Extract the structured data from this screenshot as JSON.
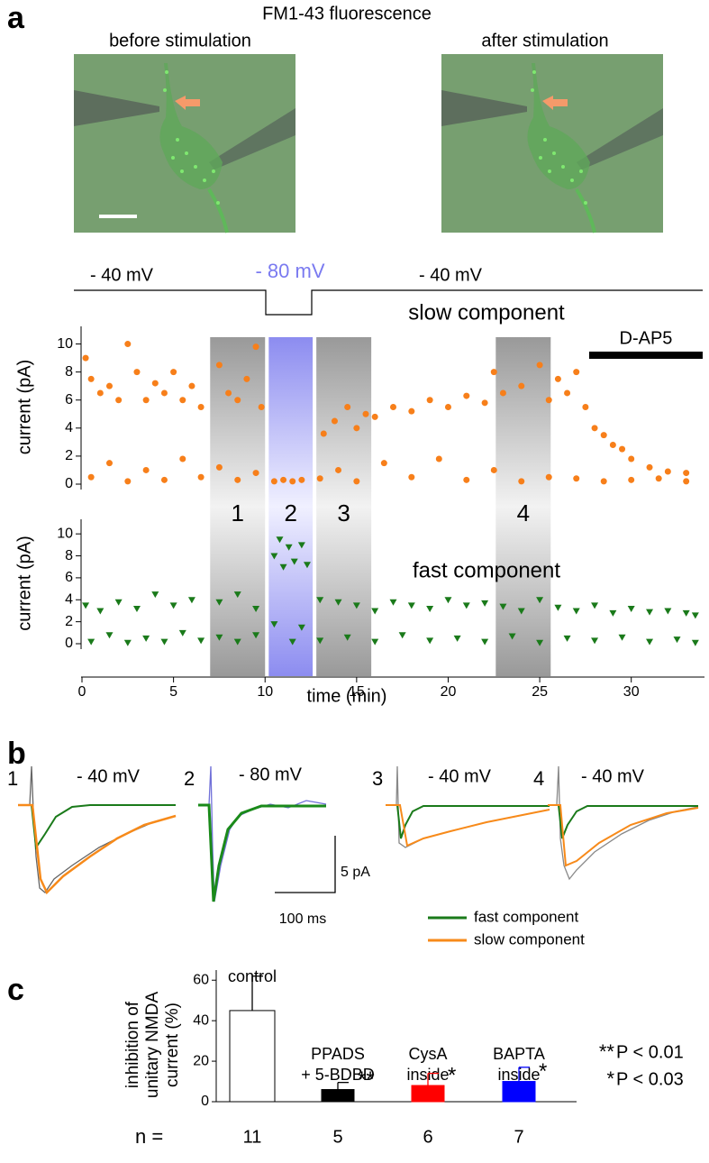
{
  "panel_a": {
    "letter": "a",
    "title": "FM1-43 fluorescence",
    "image_labels": [
      "before stimulation",
      "after stimulation"
    ],
    "protocol": [
      "- 40 mV",
      "- 80 mV",
      "- 40 mV"
    ],
    "periods": [
      {
        "label": "1",
        "start": 7,
        "end": 10
      },
      {
        "label": "2",
        "start": 10.2,
        "end": 12.6
      },
      {
        "label": "3",
        "start": 12.8,
        "end": 15.8
      },
      {
        "label": "4",
        "start": 22.6,
        "end": 25.6
      }
    ],
    "drug": {
      "label": "D-AP5",
      "start": 27.7,
      "end": 33.9
    }
  },
  "chart_data": [
    {
      "type": "scatter",
      "title": "slow component",
      "ylabel": "current (pA)",
      "xlim": [
        0,
        34
      ],
      "ylim": [
        0,
        11
      ],
      "yticks": [
        0,
        2,
        4,
        6,
        8,
        10
      ],
      "series": [
        {
          "color": "#f77f1a",
          "marker": "circle",
          "x": [
            0.2,
            0.5,
            1,
            1.5,
            2,
            2.5,
            3,
            3.5,
            4,
            4.5,
            5,
            5.5,
            6,
            6.5,
            7.5,
            8,
            8.5,
            9,
            9.5,
            9.8,
            13.2,
            13.8,
            14.5,
            15,
            15.5,
            16,
            17,
            18,
            19,
            20,
            21,
            22,
            22.5,
            23,
            24,
            25,
            25.5,
            26,
            26.5,
            27,
            27.5,
            28,
            28.5,
            29,
            29.5,
            30,
            31,
            32,
            33
          ],
          "values": [
            9,
            7.5,
            6.5,
            7,
            6,
            10,
            8,
            6,
            7.2,
            6.5,
            8,
            6,
            7,
            5.5,
            8.5,
            6.5,
            6,
            7.5,
            9.8,
            5.5,
            3.6,
            4.5,
            5.5,
            4,
            5,
            4.8,
            5.5,
            5.2,
            6,
            5.5,
            6.3,
            5.8,
            8,
            6.5,
            7,
            8.5,
            6,
            7.5,
            6.5,
            8,
            5.5,
            4,
            3.5,
            2.8,
            2.5,
            1.8,
            1.2,
            0.9,
            0.8
          ]
        },
        {
          "color": "#f77f1a",
          "marker": "circle",
          "x": [
            0.5,
            1.5,
            2.5,
            3.5,
            4.5,
            5.5,
            6.5,
            7.5,
            8.5,
            9.5,
            10.5,
            11,
            11.5,
            12,
            13,
            14,
            15,
            16.5,
            18,
            19.5,
            21,
            22.5,
            24,
            25.5,
            27,
            28.5,
            30,
            31.5,
            33
          ],
          "values": [
            0.5,
            1.5,
            0.2,
            1,
            0.3,
            1.8,
            0.5,
            1.2,
            0.3,
            0.8,
            0.2,
            0.3,
            0.2,
            0.3,
            0.4,
            1,
            0.2,
            1.5,
            0.5,
            1.8,
            0.3,
            1,
            0.2,
            0.5,
            0.4,
            0.2,
            0.3,
            0.4,
            0.2
          ]
        }
      ]
    },
    {
      "type": "scatter",
      "title": "fast component",
      "ylabel": "current (pA)",
      "xlabel": "time   (min)",
      "xlim": [
        0,
        34
      ],
      "xticks": [
        0,
        5,
        10,
        15,
        20,
        25,
        30
      ],
      "ylim": [
        0,
        11
      ],
      "yticks": [
        0,
        2,
        4,
        6,
        8,
        10
      ],
      "series": [
        {
          "color": "#1a7a1a",
          "marker": "triangle-down",
          "x": [
            0.2,
            1,
            2,
            3,
            4,
            5,
            6,
            7.5,
            8.5,
            9.5,
            10.5,
            10.8,
            11,
            11.3,
            11.6,
            12,
            12.3,
            13,
            14,
            15,
            16,
            17,
            18,
            19,
            20,
            21,
            22,
            23,
            24,
            25,
            26,
            27,
            28,
            29,
            30,
            31,
            32,
            33,
            33.5
          ],
          "values": [
            3.5,
            3,
            3.8,
            3.2,
            4.5,
            3.5,
            4,
            3.8,
            4.5,
            3.2,
            8,
            9.5,
            7,
            8.8,
            7.5,
            9,
            7.2,
            4,
            3.8,
            3.5,
            3,
            3.8,
            3.5,
            3.2,
            4,
            3.5,
            3.7,
            3.4,
            3,
            4,
            3.3,
            3,
            3.5,
            2.8,
            3.2,
            2.9,
            3,
            2.8,
            2.6
          ]
        },
        {
          "color": "#1a7a1a",
          "marker": "triangle-down",
          "x": [
            0.5,
            1.5,
            2.5,
            3.5,
            4.5,
            5.5,
            6.5,
            7.5,
            8.5,
            9.5,
            10.5,
            11.5,
            12,
            13,
            14.5,
            16,
            17.5,
            19,
            20.5,
            22,
            23.5,
            25,
            26.5,
            28,
            29.5,
            31,
            32.5,
            33.5
          ],
          "values": [
            0.2,
            0.8,
            0.1,
            0.5,
            0.2,
            1,
            0.3,
            0.6,
            0.2,
            0.8,
            1.8,
            0.2,
            1.5,
            0.3,
            0.6,
            0.2,
            0.8,
            0.3,
            0.5,
            0.2,
            0.7,
            0.1,
            0.5,
            0.3,
            0.6,
            0.2,
            0.4,
            0.1
          ]
        }
      ]
    },
    {
      "type": "bar",
      "ylabel": [
        "inhibition of",
        "unitary NMDA",
        "current (%)"
      ],
      "ylim": [
        0,
        65
      ],
      "yticks": [
        0,
        20,
        40,
        60
      ],
      "categories": [
        [
          "control"
        ],
        [
          "PPADS",
          "+ 5-BDBD"
        ],
        [
          "CysA",
          "inside"
        ],
        [
          "BAPTA",
          "inside"
        ]
      ],
      "values": [
        45,
        6,
        8,
        10
      ],
      "errors": [
        17,
        3.5,
        6,
        7
      ],
      "colors": [
        "#ffffff",
        "#000000",
        "#ff0000",
        "#0000ff"
      ],
      "significance": [
        null,
        "**",
        "*",
        "*"
      ],
      "n_label": "n =",
      "n": [
        11,
        5,
        6,
        7
      ],
      "p_notes": [
        {
          "stars": "**",
          "text": "P < 0.01"
        },
        {
          "stars": "*",
          "text": "P < 0.03"
        }
      ]
    }
  ],
  "panel_b": {
    "letter": "b",
    "traces": [
      {
        "num": "1",
        "label": "- 40 mV"
      },
      {
        "num": "2",
        "label": "- 80  mV"
      },
      {
        "num": "3",
        "label": "- 40 mV"
      },
      {
        "num": "4",
        "label": "- 40 mV"
      }
    ],
    "scale_y": "5 pA",
    "scale_x": "100 ms",
    "legend": [
      {
        "name": "fast component",
        "color": "#1a7a1a"
      },
      {
        "name": "slow component",
        "color": "#f78a1a"
      }
    ]
  },
  "panel_c": {
    "letter": "c"
  }
}
